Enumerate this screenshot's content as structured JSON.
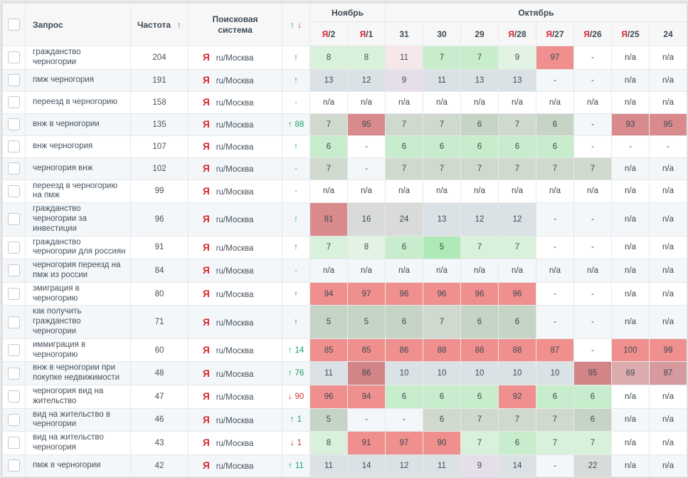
{
  "palette": {
    "g1": "#aeeab7",
    "g2": "#c7edcc",
    "g3": "#d9f0db",
    "g4": "#e2f3e4",
    "gg1": "#c5d4c4",
    "gg2": "#cfd9cd",
    "gy": "#dbe2e6",
    "gn": "#d8dbd8",
    "pk": "#f6e7ea",
    "pp": "#e6dee9",
    "r1": "#ef8f8e",
    "r2": "#d88a8c",
    "r3": "#d28487",
    "r4": "#dcabad",
    "r5": "#d59a9d",
    "n": ""
  },
  "accent_colors": {
    "yandex_red": "#d8232a",
    "up_green": "#1d9d62",
    "down_red": "#cc3333",
    "stripe": "#f3f7fa"
  },
  "header": {
    "query": "Запрос",
    "frequency": "Частота",
    "frequency_sort": "↑",
    "engine": "Поисковая система",
    "change_up": "↑",
    "change_down": "↓",
    "months": [
      {
        "label": "Ноябрь",
        "span": 2
      },
      {
        "label": "Октябрь",
        "span": 8
      }
    ],
    "days": [
      {
        "ya": "Я",
        "d": "/2"
      },
      {
        "ya": "Я",
        "d": "/1"
      },
      {
        "ya": "",
        "d": "31"
      },
      {
        "ya": "",
        "d": "30"
      },
      {
        "ya": "",
        "d": "29"
      },
      {
        "ya": "Я",
        "d": "/28"
      },
      {
        "ya": "Я",
        "d": "/27"
      },
      {
        "ya": "Я",
        "d": "/26"
      },
      {
        "ya": "Я",
        "d": "/25"
      },
      {
        "ya": "",
        "d": "24"
      }
    ]
  },
  "engine": {
    "icon": "Я",
    "region": "ru/Москва"
  },
  "rows": [
    {
      "query": "гражданство черногории",
      "frequency": "204",
      "dir": "up",
      "arrow": "↑",
      "delta": "",
      "cells": [
        {
          "v": "8",
          "c": "g3"
        },
        {
          "v": "8",
          "c": "g3"
        },
        {
          "v": "11",
          "c": "pk"
        },
        {
          "v": "7",
          "c": "g2"
        },
        {
          "v": "7",
          "c": "g2"
        },
        {
          "v": "9",
          "c": "g4"
        },
        {
          "v": "97",
          "c": "r1"
        },
        {
          "v": "-",
          "c": "n"
        },
        {
          "v": "n/a",
          "c": "n"
        },
        {
          "v": "n/a",
          "c": "n"
        }
      ]
    },
    {
      "query": "пмж черногория",
      "frequency": "191",
      "dir": "up",
      "arrow": "↑",
      "delta": "",
      "cells": [
        {
          "v": "13",
          "c": "gy"
        },
        {
          "v": "12",
          "c": "gy"
        },
        {
          "v": "9",
          "c": "pp"
        },
        {
          "v": "11",
          "c": "gy"
        },
        {
          "v": "13",
          "c": "gy"
        },
        {
          "v": "13",
          "c": "gy"
        },
        {
          "v": "-",
          "c": "n"
        },
        {
          "v": "-",
          "c": "n"
        },
        {
          "v": "n/a",
          "c": "n"
        },
        {
          "v": "n/a",
          "c": "n"
        }
      ]
    },
    {
      "query": "переезд в черногорию",
      "frequency": "158",
      "dir": "none",
      "arrow": "-",
      "delta": "",
      "cells": [
        {
          "v": "n/a",
          "c": "n"
        },
        {
          "v": "n/a",
          "c": "n"
        },
        {
          "v": "n/a",
          "c": "n"
        },
        {
          "v": "n/a",
          "c": "n"
        },
        {
          "v": "n/a",
          "c": "n"
        },
        {
          "v": "n/a",
          "c": "n"
        },
        {
          "v": "n/a",
          "c": "n"
        },
        {
          "v": "n/a",
          "c": "n"
        },
        {
          "v": "n/a",
          "c": "n"
        },
        {
          "v": "n/a",
          "c": "n"
        }
      ]
    },
    {
      "query": "внж в черногории",
      "frequency": "135",
      "dir": "up",
      "arrow": "↑",
      "delta": "88",
      "cells": [
        {
          "v": "7",
          "c": "gg2"
        },
        {
          "v": "95",
          "c": "r2"
        },
        {
          "v": "7",
          "c": "gg2"
        },
        {
          "v": "7",
          "c": "gg2"
        },
        {
          "v": "6",
          "c": "gg1"
        },
        {
          "v": "7",
          "c": "gg2"
        },
        {
          "v": "6",
          "c": "gg1"
        },
        {
          "v": "-",
          "c": "n"
        },
        {
          "v": "93",
          "c": "r2"
        },
        {
          "v": "95",
          "c": "r2"
        }
      ]
    },
    {
      "query": "внж черногория",
      "frequency": "107",
      "dir": "up",
      "arrow": "↑",
      "delta": "",
      "cells": [
        {
          "v": "6",
          "c": "g2"
        },
        {
          "v": "-",
          "c": "n"
        },
        {
          "v": "6",
          "c": "g2"
        },
        {
          "v": "6",
          "c": "g2"
        },
        {
          "v": "6",
          "c": "g2"
        },
        {
          "v": "6",
          "c": "g2"
        },
        {
          "v": "6",
          "c": "g2"
        },
        {
          "v": "-",
          "c": "n"
        },
        {
          "v": "-",
          "c": "n"
        },
        {
          "v": "-",
          "c": "n"
        }
      ]
    },
    {
      "query": "черногория внж",
      "frequency": "102",
      "dir": "none",
      "arrow": "-",
      "delta": "",
      "cells": [
        {
          "v": "7",
          "c": "gg2"
        },
        {
          "v": "-",
          "c": "n"
        },
        {
          "v": "7",
          "c": "gg2"
        },
        {
          "v": "7",
          "c": "gg2"
        },
        {
          "v": "7",
          "c": "gg2"
        },
        {
          "v": "7",
          "c": "gg2"
        },
        {
          "v": "7",
          "c": "gg2"
        },
        {
          "v": "7",
          "c": "gg2"
        },
        {
          "v": "n/a",
          "c": "n"
        },
        {
          "v": "n/a",
          "c": "n"
        }
      ]
    },
    {
      "query": "переезд в черногорию на пмж",
      "frequency": "99",
      "dir": "none",
      "arrow": "-",
      "delta": "",
      "cells": [
        {
          "v": "n/a",
          "c": "n"
        },
        {
          "v": "n/a",
          "c": "n"
        },
        {
          "v": "n/a",
          "c": "n"
        },
        {
          "v": "n/a",
          "c": "n"
        },
        {
          "v": "n/a",
          "c": "n"
        },
        {
          "v": "n/a",
          "c": "n"
        },
        {
          "v": "n/a",
          "c": "n"
        },
        {
          "v": "n/a",
          "c": "n"
        },
        {
          "v": "n/a",
          "c": "n"
        },
        {
          "v": "n/a",
          "c": "n"
        }
      ]
    },
    {
      "query": "гражданство черногории за инвестиции",
      "frequency": "96",
      "dir": "up",
      "arrow": "↑",
      "delta": "",
      "cells": [
        {
          "v": "81",
          "c": "r2"
        },
        {
          "v": "16",
          "c": "gn"
        },
        {
          "v": "24",
          "c": "gn"
        },
        {
          "v": "13",
          "c": "gy"
        },
        {
          "v": "12",
          "c": "gy"
        },
        {
          "v": "12",
          "c": "gy"
        },
        {
          "v": "-",
          "c": "n"
        },
        {
          "v": "-",
          "c": "n"
        },
        {
          "v": "n/a",
          "c": "n"
        },
        {
          "v": "n/a",
          "c": "n"
        }
      ]
    },
    {
      "query": "гражданство черногории для россиян",
      "frequency": "91",
      "dir": "up",
      "arrow": "↑",
      "delta": "",
      "cells": [
        {
          "v": "7",
          "c": "g3"
        },
        {
          "v": "8",
          "c": "g4"
        },
        {
          "v": "6",
          "c": "g2"
        },
        {
          "v": "5",
          "c": "g1"
        },
        {
          "v": "7",
          "c": "g3"
        },
        {
          "v": "7",
          "c": "g3"
        },
        {
          "v": "-",
          "c": "n"
        },
        {
          "v": "-",
          "c": "n"
        },
        {
          "v": "n/a",
          "c": "n"
        },
        {
          "v": "n/a",
          "c": "n"
        }
      ]
    },
    {
      "query": "черногория переезд на пмж из россии",
      "frequency": "84",
      "dir": "none",
      "arrow": "-",
      "delta": "",
      "cells": [
        {
          "v": "n/a",
          "c": "n"
        },
        {
          "v": "n/a",
          "c": "n"
        },
        {
          "v": "n/a",
          "c": "n"
        },
        {
          "v": "n/a",
          "c": "n"
        },
        {
          "v": "n/a",
          "c": "n"
        },
        {
          "v": "n/a",
          "c": "n"
        },
        {
          "v": "n/a",
          "c": "n"
        },
        {
          "v": "n/a",
          "c": "n"
        },
        {
          "v": "n/a",
          "c": "n"
        },
        {
          "v": "n/a",
          "c": "n"
        }
      ]
    },
    {
      "query": "эмиграция в черногорию",
      "frequency": "80",
      "dir": "up",
      "arrow": "↑",
      "delta": "",
      "cells": [
        {
          "v": "94",
          "c": "r1"
        },
        {
          "v": "97",
          "c": "r1"
        },
        {
          "v": "96",
          "c": "r1"
        },
        {
          "v": "96",
          "c": "r1"
        },
        {
          "v": "96",
          "c": "r1"
        },
        {
          "v": "96",
          "c": "r1"
        },
        {
          "v": "-",
          "c": "n"
        },
        {
          "v": "-",
          "c": "n"
        },
        {
          "v": "n/a",
          "c": "n"
        },
        {
          "v": "n/a",
          "c": "n"
        }
      ]
    },
    {
      "query": "как получить гражданство черногории",
      "frequency": "71",
      "dir": "up",
      "arrow": "↑",
      "delta": "",
      "cells": [
        {
          "v": "5",
          "c": "gg1"
        },
        {
          "v": "5",
          "c": "gg1"
        },
        {
          "v": "6",
          "c": "gg1"
        },
        {
          "v": "7",
          "c": "gg2"
        },
        {
          "v": "6",
          "c": "gg1"
        },
        {
          "v": "6",
          "c": "gg1"
        },
        {
          "v": "-",
          "c": "n"
        },
        {
          "v": "-",
          "c": "n"
        },
        {
          "v": "n/a",
          "c": "n"
        },
        {
          "v": "n/a",
          "c": "n"
        }
      ]
    },
    {
      "query": "иммиграция в черногорию",
      "frequency": "60",
      "dir": "up",
      "arrow": "↑",
      "delta": "14",
      "cells": [
        {
          "v": "85",
          "c": "r1"
        },
        {
          "v": "85",
          "c": "r1"
        },
        {
          "v": "86",
          "c": "r1"
        },
        {
          "v": "88",
          "c": "r1"
        },
        {
          "v": "88",
          "c": "r1"
        },
        {
          "v": "88",
          "c": "r1"
        },
        {
          "v": "87",
          "c": "r1"
        },
        {
          "v": "-",
          "c": "n"
        },
        {
          "v": "100",
          "c": "r1"
        },
        {
          "v": "99",
          "c": "r1"
        }
      ]
    },
    {
      "query": "внж в черногории при покупке недвижимости",
      "frequency": "48",
      "dir": "up",
      "arrow": "↑",
      "delta": "76",
      "cells": [
        {
          "v": "11",
          "c": "gy"
        },
        {
          "v": "86",
          "c": "r3"
        },
        {
          "v": "10",
          "c": "gy"
        },
        {
          "v": "10",
          "c": "gy"
        },
        {
          "v": "10",
          "c": "gy"
        },
        {
          "v": "10",
          "c": "gy"
        },
        {
          "v": "10",
          "c": "gy"
        },
        {
          "v": "95",
          "c": "r3"
        },
        {
          "v": "69",
          "c": "r4"
        },
        {
          "v": "87",
          "c": "r5"
        }
      ]
    },
    {
      "query": "черногория вид на жительство",
      "frequency": "47",
      "dir": "down",
      "arrow": "↓",
      "delta": "90",
      "cells": [
        {
          "v": "96",
          "c": "r1"
        },
        {
          "v": "94",
          "c": "r1"
        },
        {
          "v": "6",
          "c": "g2"
        },
        {
          "v": "6",
          "c": "g2"
        },
        {
          "v": "6",
          "c": "g2"
        },
        {
          "v": "92",
          "c": "r1"
        },
        {
          "v": "6",
          "c": "g2"
        },
        {
          "v": "6",
          "c": "g2"
        },
        {
          "v": "n/a",
          "c": "n"
        },
        {
          "v": "n/a",
          "c": "n"
        }
      ]
    },
    {
      "query": "вид на жительство в черногории",
      "frequency": "46",
      "dir": "up",
      "arrow": "↑",
      "delta": "1",
      "cells": [
        {
          "v": "5",
          "c": "gg1"
        },
        {
          "v": "-",
          "c": "n"
        },
        {
          "v": "-",
          "c": "n"
        },
        {
          "v": "6",
          "c": "gg2"
        },
        {
          "v": "7",
          "c": "gg2"
        },
        {
          "v": "7",
          "c": "gg2"
        },
        {
          "v": "7",
          "c": "gg2"
        },
        {
          "v": "6",
          "c": "gg1"
        },
        {
          "v": "n/a",
          "c": "n"
        },
        {
          "v": "n/a",
          "c": "n"
        }
      ]
    },
    {
      "query": "вид на жительство черногория",
      "frequency": "43",
      "dir": "down",
      "arrow": "↓",
      "delta": "1",
      "cells": [
        {
          "v": "8",
          "c": "g3"
        },
        {
          "v": "91",
          "c": "r1"
        },
        {
          "v": "97",
          "c": "r1"
        },
        {
          "v": "90",
          "c": "r1"
        },
        {
          "v": "7",
          "c": "g3"
        },
        {
          "v": "6",
          "c": "g2"
        },
        {
          "v": "7",
          "c": "g3"
        },
        {
          "v": "7",
          "c": "g3"
        },
        {
          "v": "n/a",
          "c": "n"
        },
        {
          "v": "n/a",
          "c": "n"
        }
      ]
    },
    {
      "query": "пмж в черногории",
      "frequency": "42",
      "dir": "up",
      "arrow": "↑",
      "delta": "11",
      "cells": [
        {
          "v": "11",
          "c": "gy"
        },
        {
          "v": "14",
          "c": "gy"
        },
        {
          "v": "12",
          "c": "gy"
        },
        {
          "v": "11",
          "c": "gy"
        },
        {
          "v": "9",
          "c": "pp"
        },
        {
          "v": "14",
          "c": "gy"
        },
        {
          "v": "-",
          "c": "n"
        },
        {
          "v": "22",
          "c": "gn"
        },
        {
          "v": "n/a",
          "c": "n"
        },
        {
          "v": "n/a",
          "c": "n"
        }
      ]
    }
  ]
}
